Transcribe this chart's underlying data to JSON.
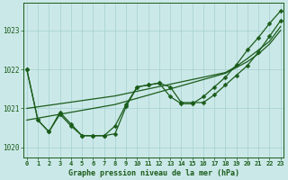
{
  "title": "Graphe pression niveau de la mer (hPa)",
  "bg_color": "#cbe8e8",
  "grid_color": "#aad4d4",
  "line_color": "#1a5c1a",
  "x_labels": [
    "0",
    "1",
    "2",
    "3",
    "4",
    "5",
    "6",
    "7",
    "8",
    "9",
    "10",
    "11",
    "12",
    "13",
    "14",
    "15",
    "16",
    "17",
    "18",
    "19",
    "20",
    "21",
    "22",
    "23"
  ],
  "hours": [
    0,
    1,
    2,
    3,
    4,
    5,
    6,
    7,
    8,
    9,
    10,
    11,
    12,
    13,
    14,
    15,
    16,
    17,
    18,
    19,
    20,
    21,
    22,
    23
  ],
  "straight1": [
    1020.7,
    1020.75,
    1020.8,
    1020.85,
    1020.9,
    1020.95,
    1021.0,
    1021.05,
    1021.1,
    1021.18,
    1021.26,
    1021.34,
    1021.42,
    1021.5,
    1021.58,
    1021.66,
    1021.74,
    1021.82,
    1021.9,
    1022.05,
    1022.2,
    1022.4,
    1022.65,
    1023.0
  ],
  "straight2": [
    1021.0,
    1021.04,
    1021.08,
    1021.12,
    1021.16,
    1021.2,
    1021.24,
    1021.28,
    1021.32,
    1021.38,
    1021.44,
    1021.5,
    1021.56,
    1021.62,
    1021.68,
    1021.74,
    1021.8,
    1021.86,
    1021.92,
    1022.08,
    1022.28,
    1022.5,
    1022.72,
    1023.1
  ],
  "wavy1": [
    1022.0,
    1020.7,
    1020.4,
    1020.9,
    1020.6,
    1020.3,
    1020.3,
    1020.3,
    1020.35,
    1021.05,
    1021.55,
    1021.6,
    1021.65,
    1021.55,
    1021.15,
    1021.15,
    1021.15,
    1021.35,
    1021.6,
    1021.85,
    1022.1,
    1022.45,
    1022.85,
    1023.25
  ],
  "wavy2": [
    1022.0,
    1020.7,
    1020.4,
    1020.85,
    1020.55,
    1020.3,
    1020.3,
    1020.3,
    1020.55,
    1021.1,
    1021.55,
    1021.6,
    1021.65,
    1021.3,
    1021.12,
    1021.12,
    1021.3,
    1021.55,
    1021.8,
    1022.12,
    1022.5,
    1022.82,
    1023.18,
    1023.5
  ],
  "ylim": [
    1019.75,
    1023.7
  ],
  "yticks": [
    1020,
    1021,
    1022,
    1023
  ],
  "marker_size": 2.5
}
